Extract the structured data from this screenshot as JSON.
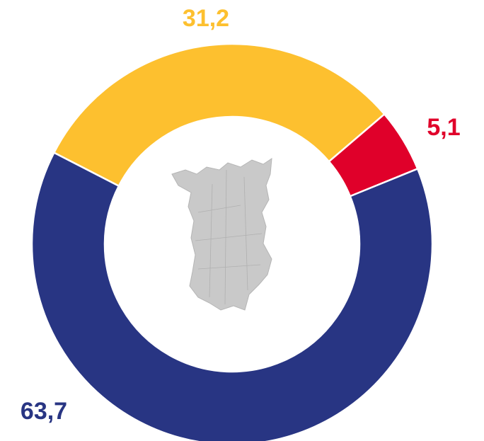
{
  "chart_data": {
    "type": "donut",
    "categories": [
      null,
      null,
      null
    ],
    "values": [
      31.2,
      5.1,
      63.7
    ],
    "value_labels": [
      "31,2",
      "5,1",
      "63,7"
    ],
    "colors": [
      "#fdc02f",
      "#e0002a",
      "#283583"
    ]
  }
}
